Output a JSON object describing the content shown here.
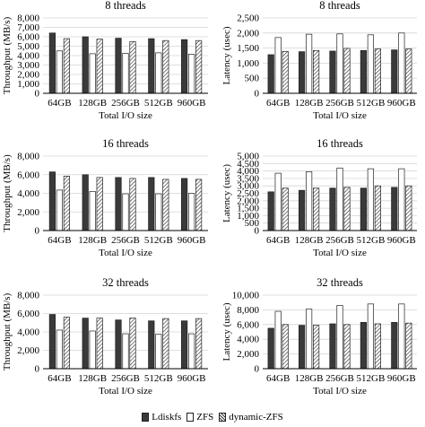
{
  "legend": {
    "items": [
      {
        "label": "Ldiskfs",
        "color": "#3a3a3a"
      },
      {
        "label": "ZFS",
        "color": "#ffffff"
      },
      {
        "label": "dynamic-ZFS",
        "color": "hatched"
      }
    ]
  },
  "chart_data": [
    {
      "type": "bar",
      "title": "8 threads",
      "xlabel": "Total I/O size",
      "ylabel": "Throughput (MB/s)",
      "ylim": [
        0,
        8000
      ],
      "yticks": [
        0,
        1000,
        2000,
        3000,
        4000,
        5000,
        6000,
        7000,
        8000
      ],
      "categories": [
        "64GB",
        "128GB",
        "256GB",
        "512GB",
        "960GB"
      ],
      "series": [
        {
          "name": "Ldiskfs",
          "values": [
            6400,
            6000,
            5850,
            5800,
            5700
          ]
        },
        {
          "name": "ZFS",
          "values": [
            4500,
            4200,
            4250,
            4300,
            4150
          ]
        },
        {
          "name": "dynamic-ZFS",
          "values": [
            5800,
            5750,
            5500,
            5600,
            5600
          ]
        }
      ]
    },
    {
      "type": "bar",
      "title": "8 threads",
      "xlabel": "Total I/O size",
      "ylabel": "Latency (usec)",
      "ylim": [
        0,
        2500
      ],
      "yticks": [
        0,
        500,
        1000,
        1500,
        2000,
        2500
      ],
      "categories": [
        "64GB",
        "128GB",
        "256GB",
        "512GB",
        "960GB"
      ],
      "series": [
        {
          "name": "Ldiskfs",
          "values": [
            1280,
            1380,
            1400,
            1420,
            1440
          ]
        },
        {
          "name": "ZFS",
          "values": [
            1850,
            1960,
            1970,
            1940,
            2000
          ]
        },
        {
          "name": "dynamic-ZFS",
          "values": [
            1390,
            1420,
            1490,
            1470,
            1470
          ]
        }
      ]
    },
    {
      "type": "bar",
      "title": "16 threads",
      "xlabel": "Total I/O size",
      "ylabel": "Throughput (MB/s)",
      "ylim": [
        0,
        8000
      ],
      "yticks": [
        0,
        2000,
        4000,
        6000,
        8000
      ],
      "categories": [
        "64GB",
        "128GB",
        "256GB",
        "512GB",
        "960GB"
      ],
      "series": [
        {
          "name": "Ldiskfs",
          "values": [
            6300,
            6000,
            5700,
            5700,
            5600
          ]
        },
        {
          "name": "ZFS",
          "values": [
            4350,
            4200,
            3950,
            3950,
            4000
          ]
        },
        {
          "name": "dynamic-ZFS",
          "values": [
            5850,
            5700,
            5600,
            5500,
            5500
          ]
        }
      ]
    },
    {
      "type": "bar",
      "title": "16 threads",
      "xlabel": "Total I/O size",
      "ylabel": "Latency (usec)",
      "ylim": [
        0,
        5000
      ],
      "yticks": [
        0,
        500,
        1000,
        1500,
        2000,
        2500,
        3000,
        3500,
        4000,
        4500,
        5000
      ],
      "categories": [
        "64GB",
        "128GB",
        "256GB",
        "512GB",
        "960GB"
      ],
      "series": [
        {
          "name": "Ldiskfs",
          "values": [
            2600,
            2700,
            2850,
            2850,
            2900
          ]
        },
        {
          "name": "ZFS",
          "values": [
            3850,
            3950,
            4200,
            4150,
            4150
          ]
        },
        {
          "name": "dynamic-ZFS",
          "values": [
            2850,
            2850,
            2900,
            3000,
            3000
          ]
        }
      ]
    },
    {
      "type": "bar",
      "title": "32 threads",
      "xlabel": "Total I/O size",
      "ylabel": "Throughput (MB/s)",
      "ylim": [
        0,
        8000
      ],
      "yticks": [
        0,
        2000,
        4000,
        6000,
        8000
      ],
      "categories": [
        "64GB",
        "128GB",
        "256GB",
        "512GB",
        "960GB"
      ],
      "series": [
        {
          "name": "Ldiskfs",
          "values": [
            5900,
            5500,
            5300,
            5200,
            5200
          ]
        },
        {
          "name": "ZFS",
          "values": [
            4200,
            4100,
            3800,
            3750,
            3800
          ]
        },
        {
          "name": "dynamic-ZFS",
          "values": [
            5600,
            5500,
            5500,
            5450,
            5450
          ]
        }
      ]
    },
    {
      "type": "bar",
      "title": "32 threads",
      "xlabel": "Total I/O size",
      "ylabel": "Latency (usec)",
      "ylim": [
        0,
        10000
      ],
      "yticks": [
        0,
        2000,
        4000,
        6000,
        8000,
        10000
      ],
      "categories": [
        "64GB",
        "128GB",
        "256GB",
        "512GB",
        "960GB"
      ],
      "series": [
        {
          "name": "Ldiskfs",
          "values": [
            5500,
            5900,
            6100,
            6300,
            6300
          ]
        },
        {
          "name": "ZFS",
          "values": [
            7800,
            8100,
            8600,
            8800,
            8800
          ]
        },
        {
          "name": "dynamic-ZFS",
          "values": [
            6000,
            5900,
            6000,
            6100,
            6200
          ]
        }
      ]
    }
  ]
}
